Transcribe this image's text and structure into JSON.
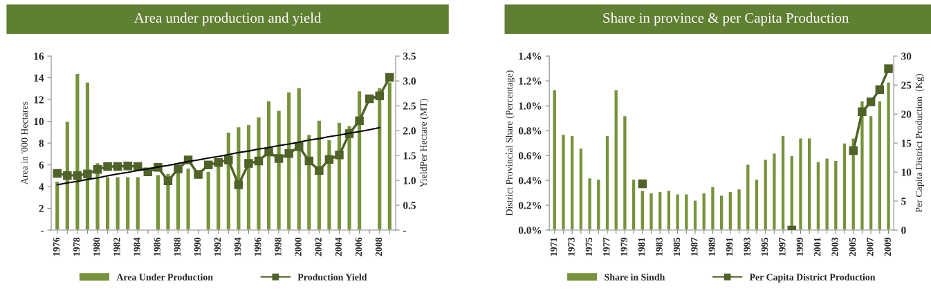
{
  "chart_data": [
    {
      "type": "bar",
      "title": "Area under production and yield",
      "ylabel": "Area in '000 Hectares",
      "y2label": "YieldPer Hectare (MT)",
      "categories": [
        "1976",
        null,
        "1978",
        null,
        "1980",
        null,
        "1982",
        null,
        "1984",
        null,
        "1986",
        null,
        "1988",
        null,
        "1990",
        null,
        "1992",
        null,
        "1994",
        null,
        "1996",
        null,
        "1998",
        null,
        "2000",
        null,
        "2002",
        null,
        "2004",
        null,
        "2006",
        null,
        "2008",
        null
      ],
      "ylim": [
        0,
        16
      ],
      "yticks": [
        {
          "value": 0,
          "label": "-"
        },
        2,
        4,
        6,
        8,
        10,
        12,
        14,
        16
      ],
      "y2lim": [
        0,
        3.5
      ],
      "y2ticks": [
        {
          "value": 0,
          "label": "-"
        },
        0.5,
        {
          "value": 1,
          "label": "1.0"
        },
        1.5,
        {
          "value": 2,
          "label": "2.0"
        },
        2.5,
        {
          "value": 3,
          "label": "3.0"
        },
        3.5
      ],
      "legend": "bottom",
      "grid": false,
      "series": [
        {
          "name": "Area Under Production",
          "color": "#77933c",
          "values": [
            4.5,
            10.0,
            14.4,
            13.6,
            6.2,
            4.9,
            4.9,
            4.9,
            4.9,
            null,
            5.1,
            5.2,
            5.3,
            5.7,
            null,
            5.4,
            6.0,
            9.0,
            9.5,
            9.7,
            10.4,
            11.9,
            11.0,
            12.7,
            13.1,
            8.8,
            10.1,
            8.3,
            9.9,
            9.6,
            12.8,
            null,
            13.1,
            13.6
          ]
        },
        {
          "name": "Production Yield",
          "type": "line",
          "axis": "y2",
          "marker": "square",
          "color": "#4f6228",
          "values": [
            1.14,
            1.1,
            1.1,
            1.13,
            1.22,
            1.28,
            1.28,
            1.29,
            1.28,
            1.17,
            1.26,
            0.99,
            1.23,
            1.41,
            1.12,
            1.31,
            1.36,
            1.41,
            0.91,
            1.34,
            1.39,
            1.57,
            1.44,
            1.54,
            1.68,
            1.39,
            1.2,
            1.42,
            1.51,
            1.94,
            2.2,
            2.64,
            2.7,
            3.07
          ]
        },
        {
          "type": "line",
          "axis": "y2",
          "marker": "none",
          "color": "#000000",
          "values": [
            0.91,
            0.95,
            0.98,
            1.02,
            1.05,
            1.09,
            1.13,
            1.16,
            1.2,
            1.23,
            1.27,
            1.3,
            1.34,
            1.38,
            1.41,
            1.45,
            1.48,
            1.52,
            1.56,
            1.59,
            1.63,
            1.66,
            1.7,
            1.73,
            1.77,
            1.81,
            1.84,
            1.88,
            1.91,
            1.95,
            1.98,
            2.02,
            2.06,
            null
          ]
        }
      ]
    },
    {
      "type": "bar",
      "title": "Share in province & per Capita Production",
      "ylabel": "District Provincial Share (Percentage)",
      "y2label": "Per Capita District Production  (Kg)",
      "categories": [
        "1971",
        null,
        "1973",
        null,
        "1975",
        null,
        "1977",
        null,
        "1979",
        null,
        "1981",
        null,
        "1983",
        null,
        "1985",
        null,
        "1987",
        null,
        "1989",
        null,
        "1991",
        null,
        "1993",
        null,
        "1995",
        null,
        "1997",
        null,
        "1999",
        null,
        "2001",
        null,
        "2003",
        null,
        "2005",
        null,
        "2007",
        null,
        "2009"
      ],
      "ylim": [
        0,
        1.4
      ],
      "yticks": [
        {
          "value": 0,
          "label": "0.0%"
        },
        {
          "value": 0.2,
          "label": "0.2%"
        },
        {
          "value": 0.4,
          "label": "0.4%"
        },
        {
          "value": 0.6,
          "label": "0.6%"
        },
        {
          "value": 0.8,
          "label": "0.8%"
        },
        {
          "value": 1.0,
          "label": "1.0%"
        },
        {
          "value": 1.2,
          "label": "1.2%"
        },
        {
          "value": 1.4,
          "label": "1.4%"
        }
      ],
      "y2lim": [
        0,
        30
      ],
      "y2ticks": [
        0,
        5,
        10,
        15,
        20,
        25,
        30
      ],
      "legend": "bottom",
      "grid": false,
      "series": [
        {
          "name": "Share in Sindh",
          "color": "#77933c",
          "values": [
            1.13,
            0.77,
            0.76,
            0.66,
            0.42,
            0.41,
            0.76,
            1.13,
            0.92,
            0.41,
            0.32,
            0.3,
            0.31,
            0.32,
            0.29,
            0.29,
            0.24,
            0.3,
            0.35,
            0.28,
            0.31,
            0.33,
            0.53,
            0.41,
            0.57,
            0.62,
            0.76,
            0.6,
            0.74,
            0.74,
            0.55,
            0.58,
            0.56,
            0.7,
            0.74,
            1.04,
            0.92,
            1.04,
            1.19
          ]
        },
        {
          "name": "Per Capita District Production",
          "type": "line",
          "axis": "y2",
          "marker": "square",
          "color": "#4f6228",
          "values": [
            null,
            null,
            null,
            null,
            null,
            null,
            null,
            null,
            null,
            null,
            8.0,
            null,
            null,
            null,
            null,
            null,
            null,
            null,
            null,
            null,
            null,
            null,
            null,
            null,
            null,
            null,
            null,
            0,
            null,
            null,
            null,
            null,
            null,
            null,
            13.7,
            20.4,
            22.1,
            24.2,
            27.8
          ]
        }
      ]
    }
  ]
}
